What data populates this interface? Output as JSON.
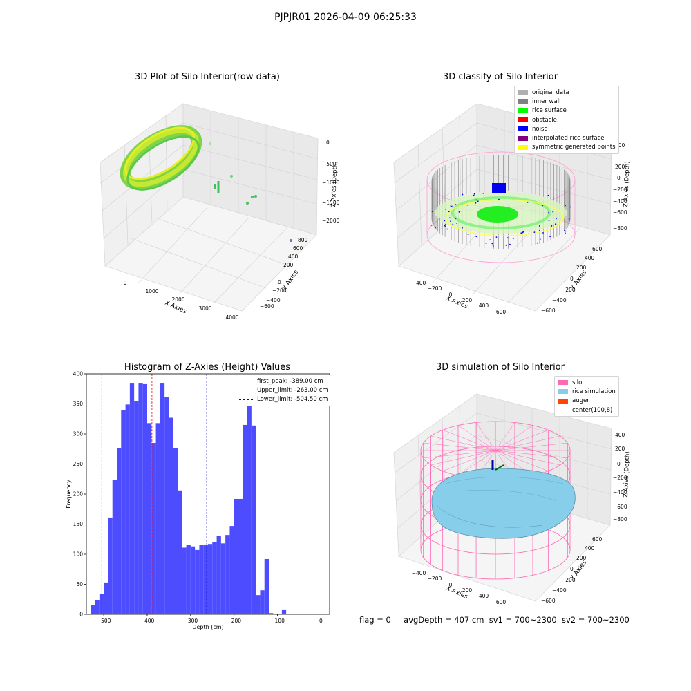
{
  "suptitle": "PJPJR01 2026-04-09 06:25:33",
  "colors": {
    "histogram_bar": "#4d4dff",
    "peak_line": "#ff0000",
    "limit_line": "#0000cc",
    "silo": "#ff69b4",
    "rice_simulation": "#87ceeb",
    "auger": "#ff4500"
  },
  "chart_data": [
    {
      "type": "scatter",
      "projection": "3d",
      "title": "3D Plot of Silo Interior(row data)",
      "xlabel": "X Axies",
      "ylabel": "Y Axies",
      "zlabel": "Z Axies (Depth)",
      "x_ticks": [
        "0",
        "1000",
        "2000",
        "3000",
        "4000"
      ],
      "y_ticks": [
        "−600",
        "−400",
        "−200",
        "0",
        "200",
        "400",
        "600",
        "800"
      ],
      "z_ticks": [
        "−2000",
        "−1500",
        "−1000",
        "−500",
        "0"
      ],
      "grid": true
    },
    {
      "type": "scatter",
      "projection": "3d",
      "title": "3D classify of Silo Interior",
      "xlabel": "X Axies",
      "ylabel": "Y Axies",
      "zlabel": "Z Axies (Depth)",
      "x_ticks": [
        "−400",
        "−200",
        "0",
        "200",
        "400",
        "600"
      ],
      "y_ticks": [
        "−600",
        "−400",
        "−200",
        "0",
        "200",
        "400",
        "600"
      ],
      "z_ticks": [
        "−800",
        "−600",
        "−400",
        "−200",
        "0",
        "200",
        "400"
      ],
      "legend_position": "top-right",
      "legend": [
        {
          "label": "original data",
          "color": "#b0b0b0"
        },
        {
          "label": "inner wall",
          "color": "#808080"
        },
        {
          "label": "rice surface",
          "color": "#00ff00"
        },
        {
          "label": "obstacle",
          "color": "#ff0000"
        },
        {
          "label": "noise",
          "color": "#0000ff"
        },
        {
          "label": "interpolated rice surface",
          "color": "#800080"
        },
        {
          "label": "symmetric generated points",
          "color": "#ffff00"
        }
      ],
      "grid": true
    },
    {
      "type": "bar",
      "title": "Histogram of Z-Axies (Height) Values",
      "xlabel": "Depth (cm)",
      "ylabel": "Frequency",
      "bin_width": 10,
      "bin_start": -530,
      "counts": [
        15,
        23,
        34,
        53,
        161,
        223,
        277,
        340,
        349,
        385,
        355,
        385,
        384,
        318,
        285,
        318,
        385,
        362,
        327,
        277,
        206,
        111,
        115,
        113,
        107,
        115,
        115,
        117,
        120,
        130,
        118,
        132,
        147,
        192,
        192,
        315,
        385,
        314,
        32,
        40,
        92,
        2,
        0,
        0,
        7
      ],
      "xlim": [
        -540,
        20
      ],
      "ylim": [
        0,
        400
      ],
      "x_ticks": [
        -500,
        -400,
        -300,
        -200,
        -100,
        0
      ],
      "y_ticks": [
        0,
        50,
        100,
        150,
        200,
        250,
        300,
        350,
        400
      ],
      "first_peak": -389.0,
      "upper_limit": -263.0,
      "lower_limit": -504.5,
      "legend_position": "top-right",
      "legend": [
        {
          "label": "first_peak: -389.00 cm"
        },
        {
          "label": "Upper_limit: -263.00 cm"
        },
        {
          "label": "Lower_limit: -504.50 cm"
        }
      ],
      "grid": false
    },
    {
      "type": "surface",
      "projection": "3d",
      "title": "3D simulation of Silo Interior",
      "xlabel": "X Axies",
      "ylabel": "Y Axies",
      "zlabel": "Z Axies (Depth)",
      "x_ticks": [
        "−400",
        "−200",
        "0",
        "200",
        "400",
        "600"
      ],
      "y_ticks": [
        "−600",
        "−400",
        "−200",
        "0",
        "200",
        "400",
        "600"
      ],
      "z_ticks": [
        "−800",
        "−600",
        "−400",
        "−200",
        "0",
        "200",
        "400"
      ],
      "legend_position": "top-right",
      "legend": [
        {
          "label": "silo",
          "color": "#ff69b4"
        },
        {
          "label": "rice simulation",
          "color": "#87ceeb"
        },
        {
          "label": "auger",
          "color": "#ff4500"
        },
        {
          "label": "center(100,8)",
          "color": "#ffffff"
        }
      ],
      "grid": true
    }
  ],
  "footer": {
    "flag": "flag = 0",
    "avg_depth": "avgDepth = 407 cm",
    "sv1": "sv1 = 700~2300",
    "sv2": "sv2 = 700~2300"
  }
}
